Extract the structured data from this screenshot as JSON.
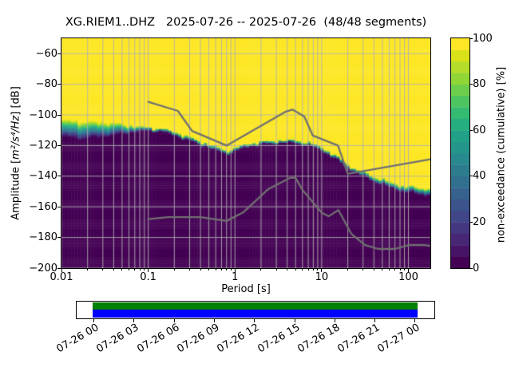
{
  "figure": {
    "title": "XG.RIEM1..DHZ   2025-07-26 -- 2025-07-26  (48/48 segments)"
  },
  "axes": {
    "ylabel_pre": "Amplitude [",
    "ylabel_math": "m²/s⁴/Hz",
    "ylabel_post": "] [dB]",
    "xlabel": "Period [s]",
    "xtick_labels": [
      "0.01",
      "0.1",
      "1",
      "10",
      "100"
    ],
    "ytick_labels": [
      "−60",
      "−80",
      "−100",
      "−120",
      "−140",
      "−160",
      "−180",
      "−200"
    ]
  },
  "colorbar": {
    "label": "non-exceedance (cumulative) [%]",
    "tick_labels": [
      "0",
      "20",
      "40",
      "60",
      "80",
      "100"
    ]
  },
  "chart_data": {
    "type": "heatmap",
    "title": "XG.RIEM1..DHZ   2025-07-26 -- 2025-07-26  (48/48 segments)",
    "xlabel": "Period [s]",
    "ylabel": "Amplitude [m²/s⁴/Hz] [dB]",
    "xscale": "log",
    "xlim": [
      0.01,
      179
    ],
    "ylim": [
      -200,
      -50
    ],
    "xticks": [
      0.01,
      0.1,
      1,
      10,
      100
    ],
    "yticks": [
      -60,
      -80,
      -100,
      -120,
      -140,
      -160,
      -180,
      -200
    ],
    "grid": {
      "color": "#b0b0b0",
      "horizontal": "major",
      "vertical": "major+minor"
    },
    "colorbar": {
      "label": "non-exceedance (cumulative) [%]",
      "ticks": [
        0,
        20,
        40,
        60,
        80,
        100
      ],
      "range": [
        0,
        100
      ],
      "cmap": "viridis",
      "levels": 20
    },
    "cumulative_band": {
      "description": "PPSD cumulative non-exceedance vs period; below db_at_0pct the value is 0% (dark), above db_at_100pct it is 100% (yellow), viridis gradient between",
      "periods_s": [
        0.01,
        0.013,
        0.017,
        0.022,
        0.03,
        0.04,
        0.055,
        0.07,
        0.09,
        0.12,
        0.15,
        0.2,
        0.3,
        0.45,
        0.6,
        0.8,
        1.0,
        1.3,
        1.7,
        2.2,
        3.0,
        4.0,
        5.0,
        6.5,
        8.0,
        10,
        13,
        16,
        20,
        25,
        32,
        45,
        60,
        80,
        100,
        130,
        179
      ],
      "db_at_0pct": [
        -114.3,
        -115.3,
        -115.9,
        -115.4,
        -114.3,
        -113.4,
        -112.2,
        -111.2,
        -110.5,
        -110.3,
        -111.0,
        -113.2,
        -117.0,
        -120.5,
        -123.0,
        -125.5,
        -123.8,
        -121.2,
        -120.0,
        -119.2,
        -118.6,
        -118.3,
        -118.6,
        -119.6,
        -121.0,
        -123.2,
        -127.0,
        -130.5,
        -134.5,
        -138.0,
        -140.8,
        -144.5,
        -147.3,
        -149.4,
        -150.6,
        -151.6,
        -152.6
      ],
      "db_at_100pct": [
        -102.5,
        -103.2,
        -103.8,
        -103.9,
        -104.3,
        -104.9,
        -105.9,
        -107.0,
        -107.6,
        -108.1,
        -108.8,
        -110.7,
        -114.3,
        -118.0,
        -120.6,
        -123.1,
        -121.6,
        -119.1,
        -117.9,
        -117.1,
        -116.4,
        -116.1,
        -116.4,
        -117.3,
        -118.7,
        -120.9,
        -124.5,
        -128.0,
        -132.0,
        -135.3,
        -137.6,
        -140.9,
        -143.4,
        -145.4,
        -146.2,
        -147.0,
        -147.8
      ]
    },
    "noise_models": {
      "color": "#707070",
      "nhnm": [
        [
          0.1,
          -91.5
        ],
        [
          0.22,
          -97.4
        ],
        [
          0.32,
          -110.5
        ],
        [
          0.8,
          -120.0
        ],
        [
          3.8,
          -98.0
        ],
        [
          4.6,
          -96.5
        ],
        [
          6.3,
          -101.0
        ],
        [
          7.9,
          -113.5
        ],
        [
          15.4,
          -120.0
        ],
        [
          20.0,
          -138.5
        ],
        [
          179.0,
          -129.0
        ]
      ],
      "nlnm": [
        [
          0.1,
          -168.0
        ],
        [
          0.17,
          -166.7
        ],
        [
          0.4,
          -166.7
        ],
        [
          0.8,
          -169.2
        ],
        [
          1.24,
          -163.7
        ],
        [
          2.4,
          -148.6
        ],
        [
          4.3,
          -141.1
        ],
        [
          5.0,
          -141.1
        ],
        [
          6.0,
          -149.0
        ],
        [
          10.0,
          -163.8
        ],
        [
          12.0,
          -166.2
        ],
        [
          15.6,
          -162.1
        ],
        [
          21.9,
          -177.5
        ],
        [
          31.6,
          -185.0
        ],
        [
          45.0,
          -187.5
        ],
        [
          70.0,
          -187.5
        ],
        [
          101.0,
          -185.0
        ],
        [
          154.0,
          -185.0
        ],
        [
          179.0,
          -185.5
        ]
      ]
    }
  },
  "timeline": {
    "tick_labels": [
      "07-26 00",
      "07-26 03",
      "07-26 06",
      "07-26 09",
      "07-26 12",
      "07-26 15",
      "07-26 18",
      "07-26 21",
      "07-27 00"
    ],
    "bars": [
      {
        "name": "data-coverage",
        "color": "#008000"
      },
      {
        "name": "psd-coverage",
        "color": "#0000ff"
      }
    ]
  }
}
